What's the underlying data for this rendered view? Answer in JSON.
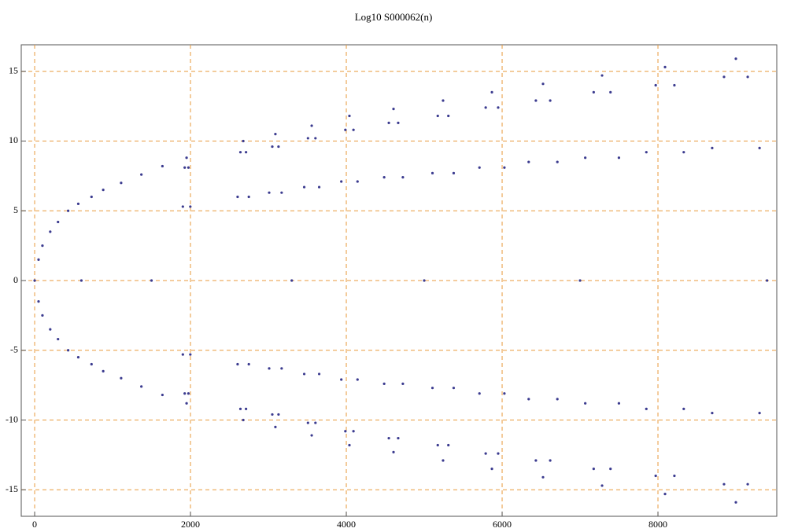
{
  "chart_data": {
    "type": "scatter",
    "title": "Log10 S000062(n)",
    "color": "#3b3b8f",
    "grid": true,
    "xlim": [
      -172,
      9525
    ],
    "ylim": [
      -16.9,
      16.9
    ],
    "xticks": [
      0,
      2000,
      4000,
      6000,
      8000
    ],
    "yticks": [
      -15,
      -10,
      -5,
      0,
      5,
      10,
      15
    ],
    "x": [
      1902,
      1926,
      1950,
      1974,
      1998,
      2605,
      2641,
      2677,
      2713,
      2749,
      3010,
      3050,
      3090,
      3130,
      3170,
      3460,
      3508,
      3556,
      3604,
      3652,
      3936,
      3988,
      4040,
      4092,
      4144,
      4486,
      4546,
      4606,
      4666,
      4726,
      5106,
      5174,
      5242,
      5310,
      5378,
      5709,
      5789,
      5869,
      5949,
      6029,
      6341,
      6433,
      6525,
      6617,
      6709,
      7067,
      7175,
      7283,
      7391,
      7499,
      7851,
      7971,
      8091,
      8211,
      8331,
      8696,
      8848,
      9000,
      9152,
      9304,
      1902,
      1926,
      1950,
      1974,
      1998,
      2605,
      2641,
      2677,
      2713,
      2749,
      3010,
      3050,
      3090,
      3130,
      3170,
      3460,
      3508,
      3556,
      3604,
      3652,
      3936,
      3988,
      4040,
      4092,
      4144,
      4486,
      4546,
      4606,
      4666,
      4726,
      5106,
      5174,
      5242,
      5310,
      5378,
      5709,
      5789,
      5869,
      5949,
      6029,
      6341,
      6433,
      6525,
      6617,
      6709,
      7067,
      7175,
      7283,
      7391,
      7499,
      7851,
      7971,
      8091,
      8211,
      8331,
      8696,
      8848,
      9000,
      9152,
      9304,
      50,
      100,
      200,
      300,
      430,
      560,
      730,
      880,
      1110,
      1370,
      1640,
      50,
      100,
      200,
      300,
      430,
      560,
      730,
      880,
      1110,
      1370,
      1640,
      0,
      600,
      1500,
      3300,
      5000,
      7000,
      9400
    ],
    "y": [
      5.3,
      8.1,
      8.8,
      8.1,
      5.3,
      6.0,
      9.2,
      10,
      9.2,
      6.0,
      6.3,
      9.6,
      10.5,
      9.6,
      6.3,
      6.7,
      10.2,
      11.1,
      10.2,
      6.7,
      7.1,
      10.8,
      11.8,
      10.8,
      7.1,
      7.4,
      11.3,
      12.3,
      11.3,
      7.4,
      7.7,
      11.8,
      12.9,
      11.8,
      7.7,
      8.1,
      12.4,
      13.5,
      12.4,
      8.1,
      8.5,
      12.9,
      14.1,
      12.9,
      8.5,
      8.8,
      13.5,
      14.7,
      13.5,
      8.8,
      9.2,
      14.0,
      15.3,
      14.0,
      9.2,
      9.5,
      14.6,
      15.9,
      14.6,
      9.5,
      -5.3,
      -8.1,
      -8.8,
      -8.1,
      -5.3,
      -6.0,
      -9.2,
      -10,
      -9.2,
      -6.0,
      -6.3,
      -9.6,
      -10.5,
      -9.6,
      -6.3,
      -6.7,
      -10.2,
      -11.1,
      -10.2,
      -6.7,
      -7.1,
      -10.8,
      -11.8,
      -10.8,
      -7.1,
      -7.4,
      -11.3,
      -12.3,
      -11.3,
      -7.4,
      -7.7,
      -11.8,
      -12.9,
      -11.8,
      -7.7,
      -8.1,
      -12.4,
      -13.5,
      -12.4,
      -8.1,
      -8.5,
      -12.9,
      -14.1,
      -12.9,
      -8.5,
      -8.8,
      -13.5,
      -14.7,
      -13.5,
      -8.8,
      -9.2,
      -14.0,
      -15.3,
      -14.0,
      -9.2,
      -9.5,
      -14.6,
      -15.9,
      -14.6,
      -9.5,
      1.5,
      2.5,
      3.5,
      4.2,
      5,
      5.5,
      6,
      6.5,
      7,
      7.6,
      8.2,
      -1.5,
      -2.5,
      -3.5,
      -4.2,
      -5,
      -5.5,
      -6,
      -6.5,
      -7,
      -7.6,
      -8.2,
      0,
      0,
      0,
      0,
      0,
      0,
      0
    ]
  }
}
